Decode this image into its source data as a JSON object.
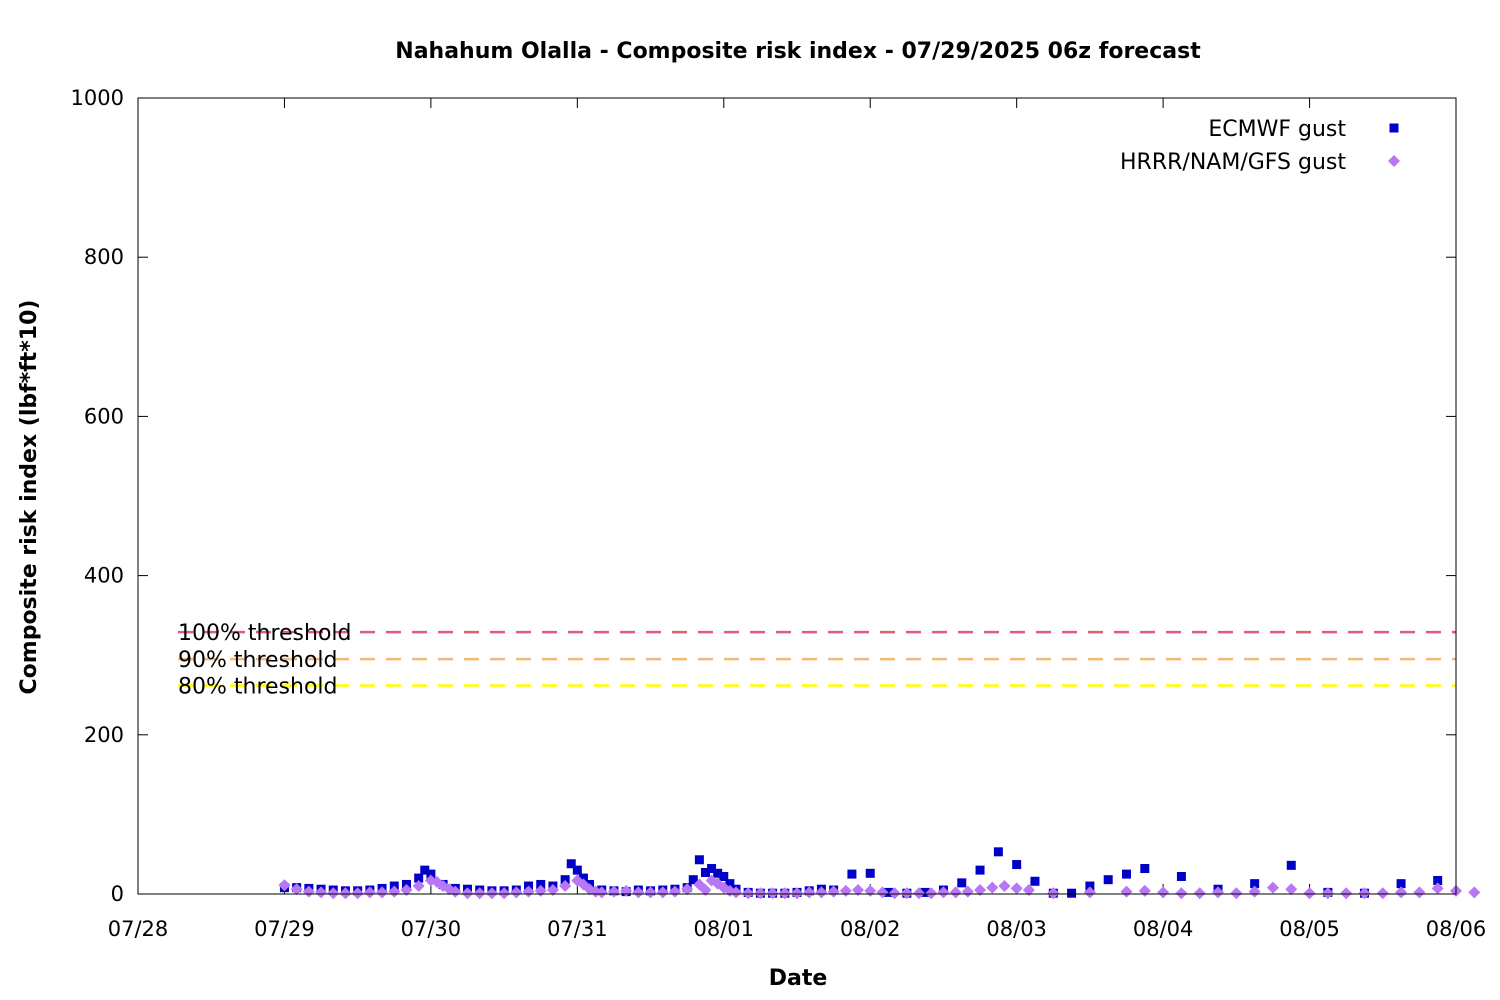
{
  "chart_data": {
    "type": "scatter",
    "title": "Nahahum Olalla - Composite risk index - 07/29/2025 06z forecast",
    "xlabel": "Date",
    "ylabel": "Composite risk index (lbf*ft*10)",
    "xlim": [
      "2025-07-28T00:00",
      "2025-08-06T00:00"
    ],
    "ylim": [
      0,
      1000
    ],
    "x_tick_labels": [
      "07/28",
      "07/29",
      "07/30",
      "07/31",
      "08/01",
      "08/02",
      "08/03",
      "08/04",
      "08/05",
      "08/06"
    ],
    "y_tick_labels": [
      "0",
      "200",
      "400",
      "600",
      "800",
      "1000"
    ],
    "legend_position": "top-right",
    "grid": false,
    "thresholds": [
      {
        "label": "100% threshold",
        "value": 329,
        "color": "#e05d7a"
      },
      {
        "label": "90% threshold",
        "value": 295,
        "color": "#f4b87a"
      },
      {
        "label": "80% threshold",
        "value": 262,
        "color": "#ffff00"
      }
    ],
    "series": [
      {
        "name": "ECMWF gust",
        "color": "#0000c8",
        "marker": "square",
        "points": [
          [
            "2025-07-29T00:00",
            8
          ],
          [
            "2025-07-29T02:00",
            8
          ],
          [
            "2025-07-29T04:00",
            7
          ],
          [
            "2025-07-29T06:00",
            6
          ],
          [
            "2025-07-29T08:00",
            5
          ],
          [
            "2025-07-29T10:00",
            4
          ],
          [
            "2025-07-29T12:00",
            4
          ],
          [
            "2025-07-29T14:00",
            5
          ],
          [
            "2025-07-29T16:00",
            7
          ],
          [
            "2025-07-29T18:00",
            10
          ],
          [
            "2025-07-29T20:00",
            12
          ],
          [
            "2025-07-29T22:00",
            20
          ],
          [
            "2025-07-29T23:00",
            30
          ],
          [
            "2025-07-30T00:00",
            25
          ],
          [
            "2025-07-30T02:00",
            12
          ],
          [
            "2025-07-30T04:00",
            7
          ],
          [
            "2025-07-30T06:00",
            6
          ],
          [
            "2025-07-30T08:00",
            5
          ],
          [
            "2025-07-30T10:00",
            4
          ],
          [
            "2025-07-30T12:00",
            4
          ],
          [
            "2025-07-30T14:00",
            5
          ],
          [
            "2025-07-30T16:00",
            10
          ],
          [
            "2025-07-30T18:00",
            12
          ],
          [
            "2025-07-30T20:00",
            10
          ],
          [
            "2025-07-30T22:00",
            18
          ],
          [
            "2025-07-30T23:00",
            38
          ],
          [
            "2025-07-31T00:00",
            30
          ],
          [
            "2025-07-31T01:00",
            20
          ],
          [
            "2025-07-31T02:00",
            12
          ],
          [
            "2025-07-31T04:00",
            5
          ],
          [
            "2025-07-31T06:00",
            4
          ],
          [
            "2025-07-31T08:00",
            3
          ],
          [
            "2025-07-31T10:00",
            5
          ],
          [
            "2025-07-31T12:00",
            4
          ],
          [
            "2025-07-31T14:00",
            5
          ],
          [
            "2025-07-31T16:00",
            6
          ],
          [
            "2025-07-31T18:00",
            8
          ],
          [
            "2025-07-31T19:00",
            18
          ],
          [
            "2025-07-31T20:00",
            43
          ],
          [
            "2025-07-31T21:00",
            27
          ],
          [
            "2025-07-31T22:00",
            32
          ],
          [
            "2025-07-31T23:00",
            26
          ],
          [
            "2025-08-01T00:00",
            22
          ],
          [
            "2025-08-01T01:00",
            13
          ],
          [
            "2025-08-01T02:00",
            6
          ],
          [
            "2025-08-01T04:00",
            2
          ],
          [
            "2025-08-01T06:00",
            1
          ],
          [
            "2025-08-01T08:00",
            1
          ],
          [
            "2025-08-01T10:00",
            1
          ],
          [
            "2025-08-01T12:00",
            2
          ],
          [
            "2025-08-01T14:00",
            4
          ],
          [
            "2025-08-01T16:00",
            6
          ],
          [
            "2025-08-01T18:00",
            5
          ],
          [
            "2025-08-01T21:00",
            25
          ],
          [
            "2025-08-02T00:00",
            26
          ],
          [
            "2025-08-02T03:00",
            2
          ],
          [
            "2025-08-02T06:00",
            1
          ],
          [
            "2025-08-02T09:00",
            2
          ],
          [
            "2025-08-02T12:00",
            5
          ],
          [
            "2025-08-02T15:00",
            14
          ],
          [
            "2025-08-02T18:00",
            30
          ],
          [
            "2025-08-02T21:00",
            53
          ],
          [
            "2025-08-03T00:00",
            37
          ],
          [
            "2025-08-03T03:00",
            16
          ],
          [
            "2025-08-03T06:00",
            1
          ],
          [
            "2025-08-03T09:00",
            1
          ],
          [
            "2025-08-03T12:00",
            10
          ],
          [
            "2025-08-03T15:00",
            18
          ],
          [
            "2025-08-03T18:00",
            25
          ],
          [
            "2025-08-03T21:00",
            32
          ],
          [
            "2025-08-04T03:00",
            22
          ],
          [
            "2025-08-04T09:00",
            6
          ],
          [
            "2025-08-04T15:00",
            13
          ],
          [
            "2025-08-04T21:00",
            36
          ],
          [
            "2025-08-05T03:00",
            2
          ],
          [
            "2025-08-05T09:00",
            1
          ],
          [
            "2025-08-05T15:00",
            13
          ],
          [
            "2025-08-05T21:00",
            17
          ]
        ]
      },
      {
        "name": "HRRR/NAM/GFS gust",
        "color": "#b877f5",
        "marker": "diamond",
        "points": [
          [
            "2025-07-29T00:00",
            11
          ],
          [
            "2025-07-29T02:00",
            6
          ],
          [
            "2025-07-29T04:00",
            3
          ],
          [
            "2025-07-29T06:00",
            2
          ],
          [
            "2025-07-29T08:00",
            1
          ],
          [
            "2025-07-29T10:00",
            1
          ],
          [
            "2025-07-29T12:00",
            1
          ],
          [
            "2025-07-29T14:00",
            2
          ],
          [
            "2025-07-29T16:00",
            2
          ],
          [
            "2025-07-29T18:00",
            3
          ],
          [
            "2025-07-29T20:00",
            5
          ],
          [
            "2025-07-29T22:00",
            10
          ],
          [
            "2025-07-30T00:00",
            17
          ],
          [
            "2025-07-30T01:00",
            15
          ],
          [
            "2025-07-30T02:00",
            10
          ],
          [
            "2025-07-30T03:00",
            6
          ],
          [
            "2025-07-30T04:00",
            3
          ],
          [
            "2025-07-30T06:00",
            1
          ],
          [
            "2025-07-30T08:00",
            1
          ],
          [
            "2025-07-30T10:00",
            1
          ],
          [
            "2025-07-30T12:00",
            1
          ],
          [
            "2025-07-30T14:00",
            2
          ],
          [
            "2025-07-30T16:00",
            3
          ],
          [
            "2025-07-30T18:00",
            4
          ],
          [
            "2025-07-30T20:00",
            5
          ],
          [
            "2025-07-30T22:00",
            10
          ],
          [
            "2025-07-31T00:00",
            17
          ],
          [
            "2025-07-31T01:00",
            12
          ],
          [
            "2025-07-31T02:00",
            6
          ],
          [
            "2025-07-31T03:00",
            3
          ],
          [
            "2025-07-31T04:00",
            2
          ],
          [
            "2025-07-31T06:00",
            3
          ],
          [
            "2025-07-31T08:00",
            4
          ],
          [
            "2025-07-31T10:00",
            2
          ],
          [
            "2025-07-31T12:00",
            2
          ],
          [
            "2025-07-31T14:00",
            2
          ],
          [
            "2025-07-31T16:00",
            3
          ],
          [
            "2025-07-31T18:00",
            6
          ],
          [
            "2025-07-31T20:00",
            12
          ],
          [
            "2025-07-31T21:00",
            5
          ],
          [
            "2025-07-31T22:00",
            17
          ],
          [
            "2025-07-31T23:00",
            13
          ],
          [
            "2025-08-01T00:00",
            8
          ],
          [
            "2025-08-01T01:00",
            4
          ],
          [
            "2025-08-01T02:00",
            2
          ],
          [
            "2025-08-01T04:00",
            1
          ],
          [
            "2025-08-01T06:00",
            1
          ],
          [
            "2025-08-01T08:00",
            1
          ],
          [
            "2025-08-01T10:00",
            1
          ],
          [
            "2025-08-01T12:00",
            1
          ],
          [
            "2025-08-01T14:00",
            2
          ],
          [
            "2025-08-01T16:00",
            2
          ],
          [
            "2025-08-01T18:00",
            3
          ],
          [
            "2025-08-01T20:00",
            4
          ],
          [
            "2025-08-01T22:00",
            5
          ],
          [
            "2025-08-02T00:00",
            4
          ],
          [
            "2025-08-02T02:00",
            2
          ],
          [
            "2025-08-02T04:00",
            1
          ],
          [
            "2025-08-02T06:00",
            1
          ],
          [
            "2025-08-02T08:00",
            1
          ],
          [
            "2025-08-02T10:00",
            1
          ],
          [
            "2025-08-02T12:00",
            2
          ],
          [
            "2025-08-02T14:00",
            2
          ],
          [
            "2025-08-02T16:00",
            3
          ],
          [
            "2025-08-02T18:00",
            5
          ],
          [
            "2025-08-02T20:00",
            8
          ],
          [
            "2025-08-02T22:00",
            10
          ],
          [
            "2025-08-03T00:00",
            7
          ],
          [
            "2025-08-03T02:00",
            5
          ],
          [
            "2025-08-03T06:00",
            1
          ],
          [
            "2025-08-03T12:00",
            2
          ],
          [
            "2025-08-03T18:00",
            3
          ],
          [
            "2025-08-03T21:00",
            4
          ],
          [
            "2025-08-04T00:00",
            2
          ],
          [
            "2025-08-04T03:00",
            1
          ],
          [
            "2025-08-04T06:00",
            1
          ],
          [
            "2025-08-04T09:00",
            2
          ],
          [
            "2025-08-04T12:00",
            1
          ],
          [
            "2025-08-04T15:00",
            3
          ],
          [
            "2025-08-04T18:00",
            8
          ],
          [
            "2025-08-04T21:00",
            6
          ],
          [
            "2025-08-05T00:00",
            1
          ],
          [
            "2025-08-05T03:00",
            1
          ],
          [
            "2025-08-05T06:00",
            1
          ],
          [
            "2025-08-05T09:00",
            1
          ],
          [
            "2025-08-05T12:00",
            1
          ],
          [
            "2025-08-05T15:00",
            2
          ],
          [
            "2025-08-05T18:00",
            2
          ],
          [
            "2025-08-05T21:00",
            7
          ],
          [
            "2025-08-06T00:00",
            4
          ],
          [
            "2025-08-06T03:00",
            2
          ]
        ]
      }
    ]
  }
}
